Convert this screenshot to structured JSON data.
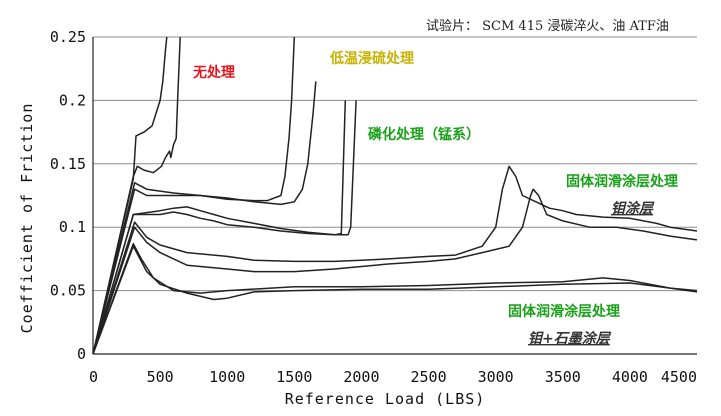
{
  "chart_data": {
    "type": "line",
    "title": "试验片： SCM 415 浸碳淬火、油 ATF油",
    "xlabel": "Reference Load (LBS)",
    "ylabel": "Coefficient of Friction",
    "xlim": [
      0,
      4500
    ],
    "ylim": [
      0,
      0.25
    ],
    "x_ticks": [
      "0",
      "500",
      "1000",
      "1500",
      "2000",
      "2500",
      "3000",
      "3500",
      "4000",
      "4500"
    ],
    "y_ticks": [
      "0",
      "0.05",
      "0.1",
      "0.15",
      "0.2",
      "0.25"
    ],
    "grid": "horizontal",
    "annotations": [
      {
        "text": "无处理",
        "color": "#e8141c",
        "style": "bold"
      },
      {
        "text": "低温浸硫处理",
        "color": "#c9b200",
        "style": "bold"
      },
      {
        "text": "磷化处理（锰系）",
        "color": "#1aa11a",
        "style": "bold"
      },
      {
        "text": "固体润滑涂层处理",
        "color": "#1aa11a",
        "style": "bold"
      },
      {
        "text": "钼涂层",
        "color": "#333333",
        "style": "italic-underline"
      },
      {
        "text": "固体润滑涂层处理",
        "color": "#1aa11a",
        "style": "bold"
      },
      {
        "text": "钼+石墨涂层",
        "color": "#333333",
        "style": "italic-underline"
      }
    ],
    "series": [
      {
        "color": "#222222",
        "points": [
          [
            0,
            0
          ],
          [
            300,
            0.138
          ],
          [
            320,
            0.172
          ],
          [
            380,
            0.175
          ],
          [
            440,
            0.18
          ],
          [
            470,
            0.19
          ],
          [
            500,
            0.2
          ],
          [
            520,
            0.215
          ],
          [
            540,
            0.24
          ],
          [
            550,
            0.25
          ]
        ]
      },
      {
        "color": "#222222",
        "points": [
          [
            0,
            0
          ],
          [
            300,
            0.14
          ],
          [
            330,
            0.148
          ],
          [
            380,
            0.145
          ],
          [
            450,
            0.143
          ],
          [
            510,
            0.148
          ],
          [
            540,
            0.155
          ],
          [
            570,
            0.16
          ],
          [
            580,
            0.155
          ],
          [
            600,
            0.165
          ],
          [
            620,
            0.17
          ],
          [
            630,
            0.2
          ],
          [
            650,
            0.25
          ]
        ]
      },
      {
        "color": "#222222",
        "points": [
          [
            0,
            0
          ],
          [
            310,
            0.135
          ],
          [
            400,
            0.13
          ],
          [
            600,
            0.127
          ],
          [
            800,
            0.125
          ],
          [
            1000,
            0.122
          ],
          [
            1200,
            0.121
          ],
          [
            1300,
            0.121
          ],
          [
            1400,
            0.125
          ],
          [
            1430,
            0.14
          ],
          [
            1460,
            0.17
          ],
          [
            1480,
            0.2
          ],
          [
            1500,
            0.25
          ]
        ]
      },
      {
        "color": "#222222",
        "points": [
          [
            0,
            0
          ],
          [
            310,
            0.13
          ],
          [
            400,
            0.125
          ],
          [
            600,
            0.125
          ],
          [
            800,
            0.125
          ],
          [
            1000,
            0.123
          ],
          [
            1200,
            0.12
          ],
          [
            1400,
            0.118
          ],
          [
            1500,
            0.12
          ],
          [
            1560,
            0.13
          ],
          [
            1600,
            0.15
          ],
          [
            1640,
            0.19
          ],
          [
            1660,
            0.215
          ]
        ]
      },
      {
        "color": "#222222",
        "points": [
          [
            0,
            0
          ],
          [
            300,
            0.11
          ],
          [
            500,
            0.113
          ],
          [
            600,
            0.115
          ],
          [
            700,
            0.116
          ],
          [
            800,
            0.113
          ],
          [
            900,
            0.11
          ],
          [
            1000,
            0.107
          ],
          [
            1200,
            0.103
          ],
          [
            1400,
            0.099
          ],
          [
            1600,
            0.096
          ],
          [
            1800,
            0.094
          ],
          [
            1850,
            0.095
          ],
          [
            1880,
            0.2
          ]
        ]
      },
      {
        "color": "#222222",
        "points": [
          [
            0,
            0
          ],
          [
            300,
            0.11
          ],
          [
            500,
            0.11
          ],
          [
            600,
            0.112
          ],
          [
            700,
            0.11
          ],
          [
            800,
            0.107
          ],
          [
            900,
            0.105
          ],
          [
            1000,
            0.102
          ],
          [
            1200,
            0.1
          ],
          [
            1400,
            0.097
          ],
          [
            1600,
            0.095
          ],
          [
            1800,
            0.094
          ],
          [
            1900,
            0.094
          ],
          [
            1920,
            0.1
          ],
          [
            1940,
            0.15
          ],
          [
            1960,
            0.2
          ]
        ]
      },
      {
        "color": "#222222",
        "points": [
          [
            0,
            0
          ],
          [
            310,
            0.104
          ],
          [
            400,
            0.092
          ],
          [
            500,
            0.086
          ],
          [
            700,
            0.08
          ],
          [
            1000,
            0.077
          ],
          [
            1200,
            0.074
          ],
          [
            1500,
            0.073
          ],
          [
            1800,
            0.073
          ],
          [
            2000,
            0.074
          ],
          [
            2200,
            0.075
          ],
          [
            2500,
            0.077
          ],
          [
            2700,
            0.078
          ],
          [
            2900,
            0.085
          ],
          [
            3000,
            0.1
          ],
          [
            3050,
            0.13
          ],
          [
            3100,
            0.148
          ],
          [
            3150,
            0.14
          ],
          [
            3200,
            0.125
          ],
          [
            3300,
            0.12
          ],
          [
            3400,
            0.115
          ],
          [
            3500,
            0.113
          ],
          [
            3600,
            0.11
          ],
          [
            3800,
            0.108
          ],
          [
            4000,
            0.107
          ],
          [
            4200,
            0.103
          ],
          [
            4300,
            0.1
          ],
          [
            4500,
            0.097
          ]
        ]
      },
      {
        "color": "#222222",
        "points": [
          [
            0,
            0
          ],
          [
            310,
            0.1
          ],
          [
            400,
            0.088
          ],
          [
            500,
            0.08
          ],
          [
            700,
            0.07
          ],
          [
            1000,
            0.067
          ],
          [
            1200,
            0.065
          ],
          [
            1500,
            0.065
          ],
          [
            1800,
            0.067
          ],
          [
            2000,
            0.069
          ],
          [
            2200,
            0.071
          ],
          [
            2500,
            0.073
          ],
          [
            2700,
            0.075
          ],
          [
            2900,
            0.08
          ],
          [
            3100,
            0.085
          ],
          [
            3200,
            0.1
          ],
          [
            3260,
            0.125
          ],
          [
            3280,
            0.13
          ],
          [
            3320,
            0.125
          ],
          [
            3380,
            0.11
          ],
          [
            3500,
            0.105
          ],
          [
            3700,
            0.1
          ],
          [
            3900,
            0.1
          ],
          [
            4100,
            0.097
          ],
          [
            4300,
            0.093
          ],
          [
            4500,
            0.09
          ]
        ]
      },
      {
        "color": "#222222",
        "points": [
          [
            0,
            0
          ],
          [
            300,
            0.087
          ],
          [
            360,
            0.075
          ],
          [
            450,
            0.06
          ],
          [
            600,
            0.05
          ],
          [
            800,
            0.048
          ],
          [
            1000,
            0.05
          ],
          [
            1500,
            0.053
          ],
          [
            2000,
            0.053
          ],
          [
            2500,
            0.054
          ],
          [
            3000,
            0.056
          ],
          [
            3500,
            0.057
          ],
          [
            3800,
            0.06
          ],
          [
            4000,
            0.058
          ],
          [
            4300,
            0.052
          ],
          [
            4500,
            0.049
          ]
        ]
      },
      {
        "color": "#222222",
        "points": [
          [
            0,
            0
          ],
          [
            300,
            0.085
          ],
          [
            400,
            0.065
          ],
          [
            500,
            0.055
          ],
          [
            700,
            0.048
          ],
          [
            900,
            0.043
          ],
          [
            1000,
            0.044
          ],
          [
            1200,
            0.049
          ],
          [
            1500,
            0.05
          ],
          [
            2000,
            0.051
          ],
          [
            2500,
            0.051
          ],
          [
            3000,
            0.053
          ],
          [
            3500,
            0.055
          ],
          [
            4000,
            0.056
          ],
          [
            4300,
            0.052
          ],
          [
            4500,
            0.05
          ]
        ]
      }
    ]
  }
}
